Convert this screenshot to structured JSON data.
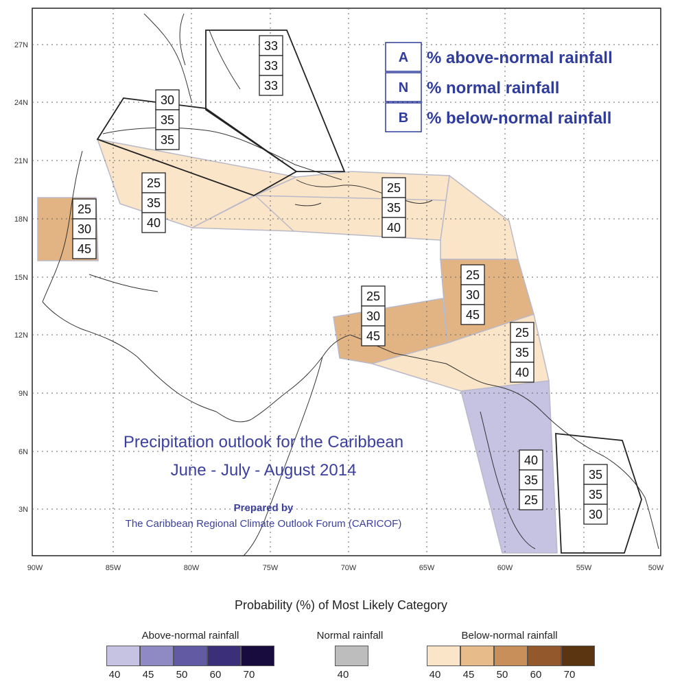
{
  "map": {
    "lat_ticks": [
      {
        "lat": 27,
        "label": "27N"
      },
      {
        "lat": 24,
        "label": "24N"
      },
      {
        "lat": 21,
        "label": "21N"
      },
      {
        "lat": 18,
        "label": "18N"
      },
      {
        "lat": 15,
        "label": "15N"
      },
      {
        "lat": 12,
        "label": "12N"
      },
      {
        "lat": 9,
        "label": "9N"
      },
      {
        "lat": 6,
        "label": "6N"
      },
      {
        "lat": 3,
        "label": "3N"
      }
    ],
    "lon_ticks": [
      {
        "lon": -90,
        "label": "90W"
      },
      {
        "lon": -85,
        "label": "85W"
      },
      {
        "lon": -80,
        "label": "80W"
      },
      {
        "lon": -75,
        "label": "75W"
      },
      {
        "lon": -70,
        "label": "70W"
      },
      {
        "lon": -65,
        "label": "65W"
      },
      {
        "lon": -60,
        "label": "60W"
      },
      {
        "lon": -55,
        "label": "55W"
      },
      {
        "lon": -50,
        "label": "50W"
      }
    ]
  },
  "key_box": {
    "rows": [
      {
        "key": "A",
        "text": "% above-normal rainfall"
      },
      {
        "key": "N",
        "text": "% normal rainfall"
      },
      {
        "key": "B",
        "text": "% below-normal rainfall"
      }
    ]
  },
  "regions": [
    {
      "name": "bahamas",
      "category": "none",
      "A": "33",
      "N": "33",
      "B": "33"
    },
    {
      "name": "cuba",
      "category": "none",
      "A": "30",
      "N": "35",
      "B": "35"
    },
    {
      "name": "cayman-jamaica",
      "category": "below-40",
      "A": "25",
      "N": "35",
      "B": "40"
    },
    {
      "name": "belize",
      "category": "below-45",
      "A": "25",
      "N": "30",
      "B": "45"
    },
    {
      "name": "hispaniola-puerto-rico",
      "category": "below-40",
      "A": "25",
      "N": "35",
      "B": "40"
    },
    {
      "name": "leeward-islands",
      "category": "below-45",
      "A": "25",
      "N": "30",
      "B": "45"
    },
    {
      "name": "abc-islands",
      "category": "below-45",
      "A": "25",
      "N": "30",
      "B": "45"
    },
    {
      "name": "trinidad-windwards",
      "category": "below-40",
      "A": "25",
      "N": "35",
      "B": "40"
    },
    {
      "name": "guyana",
      "category": "above-40",
      "A": "40",
      "N": "35",
      "B": "25"
    },
    {
      "name": "suriname-french-guiana",
      "category": "none",
      "A": "35",
      "N": "35",
      "B": "30"
    }
  ],
  "title": {
    "line1": "Precipitation outlook for the Caribbean",
    "line2": "June - July - August 2014",
    "credit1": "Prepared by",
    "credit2": "The Caribbean Regional Climate Outlook Forum (CARICOF)"
  },
  "colorscale": {
    "title": "Probability (%) of Most Likely Category",
    "groups": [
      {
        "name": "Above-normal rainfall",
        "items": [
          {
            "label": "40",
            "color": "#c5c2e2"
          },
          {
            "label": "45",
            "color": "#8f89c4"
          },
          {
            "label": "50",
            "color": "#625aa2"
          },
          {
            "label": "60",
            "color": "#3b2f79"
          },
          {
            "label": "70",
            "color": "#170c3d"
          }
        ]
      },
      {
        "name": "Normal rainfall",
        "items": [
          {
            "label": "40",
            "color": "#bdbdbd"
          }
        ]
      },
      {
        "name": "Below-normal rainfall",
        "items": [
          {
            "label": "40",
            "color": "#fbe5c8"
          },
          {
            "label": "45",
            "color": "#e8bb8a"
          },
          {
            "label": "50",
            "color": "#c98f5a"
          },
          {
            "label": "60",
            "color": "#93582c"
          },
          {
            "label": "70",
            "color": "#5b3512"
          }
        ]
      }
    ]
  }
}
